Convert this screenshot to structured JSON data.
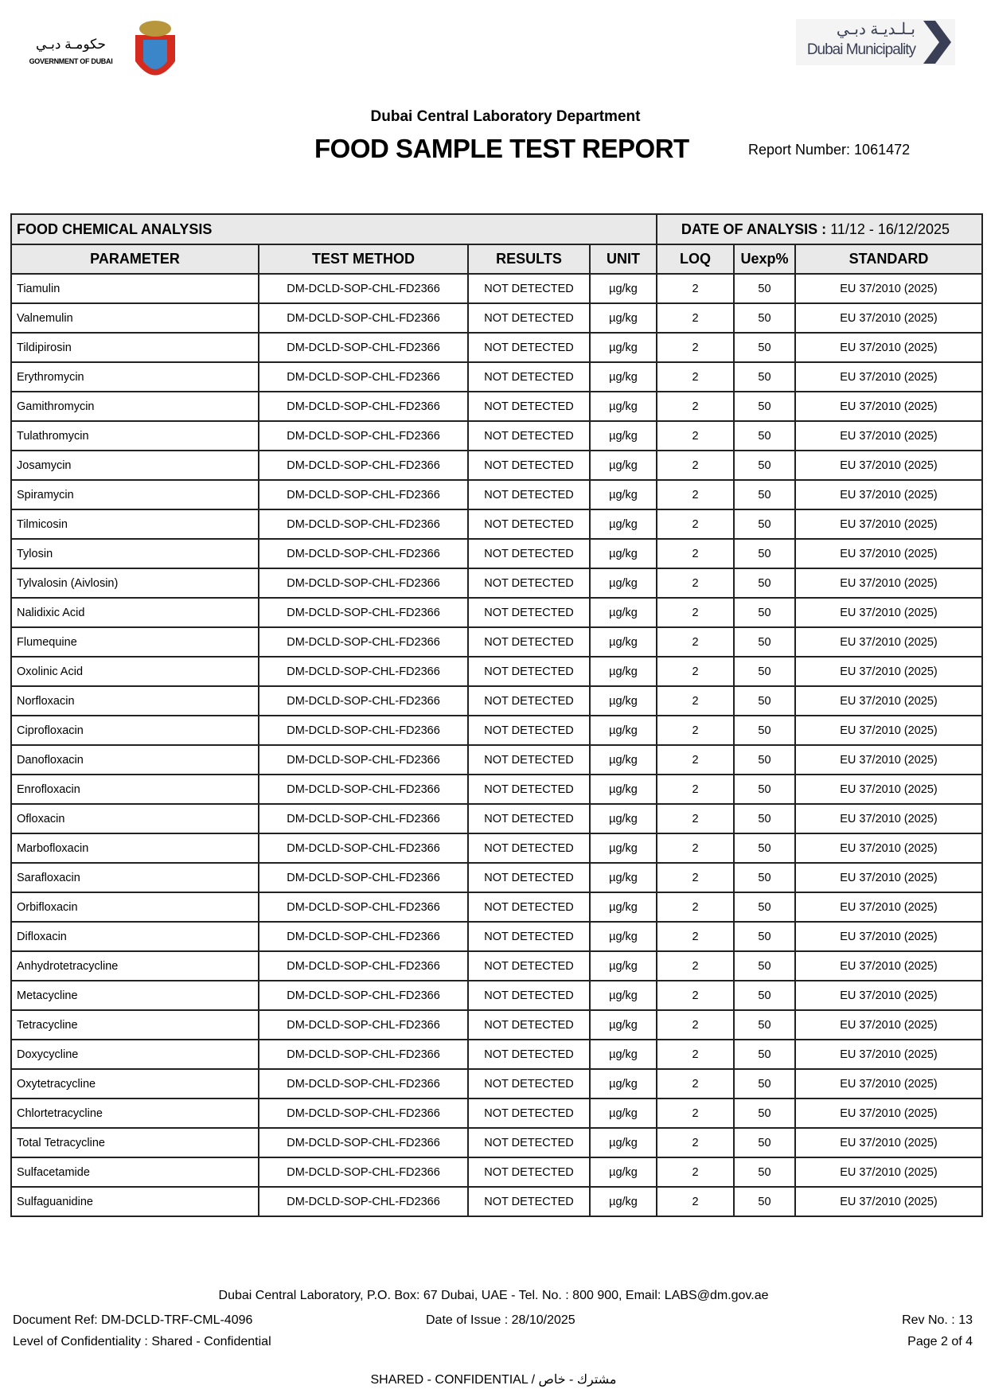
{
  "header": {
    "gov_logo_ar": "حكومـة دبـي",
    "gov_logo_en": "GOVERNMENT OF DUBAI",
    "dm_logo_ar": "بـلـديـة دبـي",
    "dm_logo_en": "Dubai Municipality",
    "department": "Dubai Central Laboratory Department",
    "title": "FOOD SAMPLE TEST REPORT",
    "report_number": "Report Number: 1061472"
  },
  "section": {
    "title": "FOOD CHEMICAL ANALYSIS",
    "date_label": "DATE OF ANALYSIS :",
    "date_value": "11/12 - 16/12/2025"
  },
  "columns": [
    "PARAMETER",
    "TEST METHOD",
    "RESULTS",
    "UNIT",
    "LOQ",
    "Uexp%",
    "STANDARD"
  ],
  "row_defaults": {
    "method": "DM-DCLD-SOP-CHL-FD2366",
    "result": "NOT DETECTED",
    "unit": "µg/kg",
    "loq": "2",
    "uexp": "50",
    "standard": "EU 37/2010 (2025)"
  },
  "rows": [
    "Tiamulin",
    "Valnemulin",
    "Tildipirosin",
    "Erythromycin",
    "Gamithromycin",
    "Tulathromycin",
    "Josamycin",
    "Spiramycin",
    "Tilmicosin",
    "Tylosin",
    "Tylvalosin (Aivlosin)",
    "Nalidixic Acid",
    "Flumequine",
    "Oxolinic Acid",
    "Norfloxacin",
    "Ciprofloxacin",
    "Danofloxacin",
    "Enrofloxacin",
    "Ofloxacin",
    "Marbofloxacin",
    "Sarafloxacin",
    "Orbifloxacin",
    "Difloxacin",
    "Anhydrotetracycline",
    "Metacycline",
    "Tetracycline",
    "Doxycycline",
    "Oxytetracycline",
    "Chlortetracycline",
    "Total Tetracycline",
    "Sulfacetamide",
    "Sulfaguanidine"
  ],
  "footer": {
    "address": "Dubai Central Laboratory, P.O. Box: 67 Dubai, UAE - Tel. No. : 800 900, Email: LABS@dm.gov.ae",
    "doc_ref": "Document Ref:  DM-DCLD-TRF-CML-4096",
    "date_of_issue": "Date of Issue :  28/10/2025",
    "rev": "Rev No. : 13",
    "confidentiality": "Level of Confidentiality : Shared - Confidential",
    "page": "Page 2 of 4",
    "shared": "SHARED - CONFIDENTIAL / مشترك - خاص"
  }
}
